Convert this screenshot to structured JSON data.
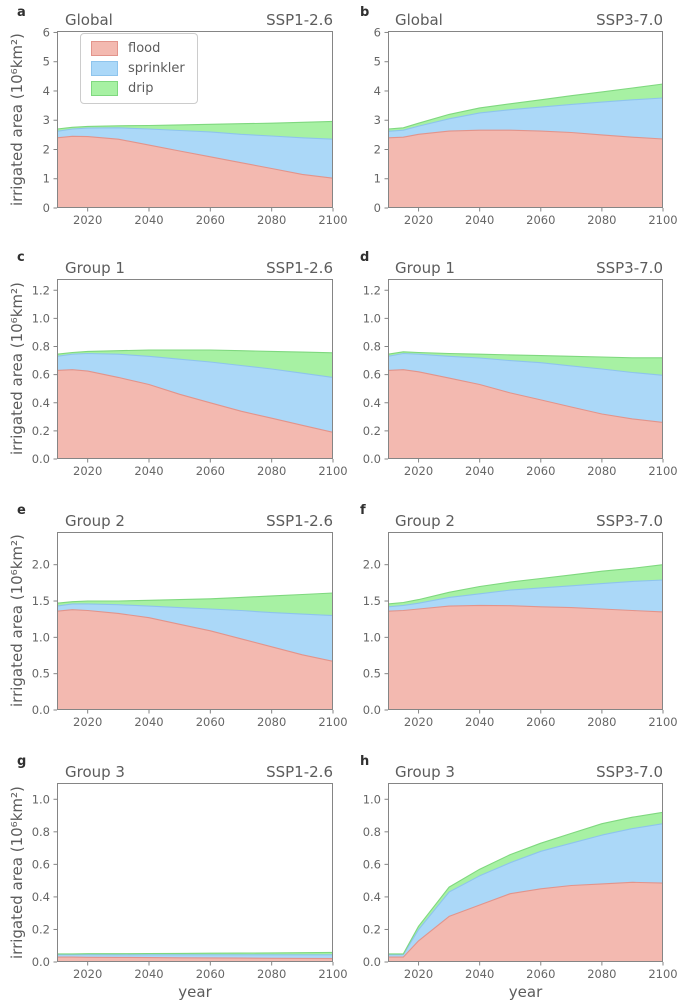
{
  "axis": {
    "xlabel": "year",
    "ylabel": "irrigated area (10⁶km²)"
  },
  "legend": {
    "items": [
      {
        "label": "flood",
        "color": "#f3b9b0",
        "edge": "#e2948b"
      },
      {
        "label": "sprinkler",
        "color": "#abd8f8",
        "edge": "#8ec4ec"
      },
      {
        "label": "drip",
        "color": "#a7f1a3",
        "edge": "#7fd87f"
      }
    ]
  },
  "style": {
    "spine_color": "#858585",
    "tick_label_color": "#666666",
    "background": "#ffffff"
  },
  "chart_data": [
    {
      "panel": "a",
      "group": "Global",
      "scenario": "SSP1-2.6",
      "type": "area",
      "stacked": true,
      "grid": false,
      "x": [
        2010,
        2015,
        2020,
        2030,
        2040,
        2050,
        2060,
        2070,
        2080,
        2090,
        2100
      ],
      "xlim": [
        2010,
        2100
      ],
      "xticks": [
        2020,
        2040,
        2060,
        2080,
        2100
      ],
      "ylim": [
        0,
        6.05
      ],
      "yticks": [
        0,
        1,
        2,
        3,
        4,
        5,
        6
      ],
      "ytick_labels": [
        "0",
        "1",
        "2",
        "3",
        "4",
        "5",
        "6"
      ],
      "series": [
        {
          "name": "flood",
          "values": [
            2.4,
            2.45,
            2.44,
            2.35,
            2.15,
            1.95,
            1.75,
            1.55,
            1.35,
            1.15,
            1.02
          ]
        },
        {
          "name": "sprinkler",
          "values": [
            0.22,
            0.25,
            0.29,
            0.39,
            0.55,
            0.7,
            0.85,
            0.97,
            1.11,
            1.25,
            1.33
          ]
        },
        {
          "name": "drip",
          "values": [
            0.08,
            0.06,
            0.06,
            0.07,
            0.12,
            0.19,
            0.26,
            0.36,
            0.44,
            0.53,
            0.61
          ]
        }
      ]
    },
    {
      "panel": "b",
      "group": "Global",
      "scenario": "SSP3-7.0",
      "type": "area",
      "stacked": true,
      "grid": false,
      "x": [
        2010,
        2015,
        2020,
        2030,
        2040,
        2050,
        2060,
        2070,
        2080,
        2090,
        2100
      ],
      "xlim": [
        2010,
        2100
      ],
      "xticks": [
        2020,
        2040,
        2060,
        2080,
        2100
      ],
      "ylim": [
        0,
        6.05
      ],
      "yticks": [
        0,
        1,
        2,
        3,
        4,
        5,
        6
      ],
      "ytick_labels": [
        "0",
        "1",
        "2",
        "3",
        "4",
        "5",
        "6"
      ],
      "series": [
        {
          "name": "flood",
          "values": [
            2.4,
            2.42,
            2.52,
            2.63,
            2.66,
            2.66,
            2.63,
            2.58,
            2.5,
            2.42,
            2.36
          ]
        },
        {
          "name": "sprinkler",
          "values": [
            0.22,
            0.24,
            0.28,
            0.42,
            0.59,
            0.7,
            0.82,
            0.96,
            1.12,
            1.28,
            1.4
          ]
        },
        {
          "name": "drip",
          "values": [
            0.08,
            0.08,
            0.1,
            0.15,
            0.17,
            0.2,
            0.25,
            0.3,
            0.35,
            0.4,
            0.48
          ]
        }
      ]
    },
    {
      "panel": "c",
      "group": "Group 1",
      "scenario": "SSP1-2.6",
      "type": "area",
      "stacked": true,
      "grid": false,
      "x": [
        2010,
        2015,
        2020,
        2030,
        2040,
        2050,
        2060,
        2070,
        2080,
        2090,
        2100
      ],
      "xlim": [
        2010,
        2100
      ],
      "xticks": [
        2020,
        2040,
        2060,
        2080,
        2100
      ],
      "ylim": [
        0,
        1.28
      ],
      "yticks": [
        0.0,
        0.2,
        0.4,
        0.6,
        0.8,
        1.0,
        1.2
      ],
      "ytick_labels": [
        "0.0",
        "0.2",
        "0.4",
        "0.6",
        "0.8",
        "1.0",
        "1.2"
      ],
      "series": [
        {
          "name": "flood",
          "values": [
            0.63,
            0.635,
            0.625,
            0.58,
            0.53,
            0.46,
            0.4,
            0.34,
            0.29,
            0.24,
            0.19
          ]
        },
        {
          "name": "sprinkler",
          "values": [
            0.1,
            0.11,
            0.125,
            0.165,
            0.2,
            0.25,
            0.29,
            0.325,
            0.35,
            0.37,
            0.39
          ]
        },
        {
          "name": "drip",
          "values": [
            0.015,
            0.012,
            0.015,
            0.025,
            0.045,
            0.065,
            0.085,
            0.105,
            0.125,
            0.15,
            0.175
          ]
        }
      ]
    },
    {
      "panel": "d",
      "group": "Group 1",
      "scenario": "SSP3-7.0",
      "type": "area",
      "stacked": true,
      "grid": false,
      "x": [
        2010,
        2015,
        2020,
        2030,
        2040,
        2050,
        2060,
        2070,
        2080,
        2090,
        2100
      ],
      "xlim": [
        2010,
        2100
      ],
      "xticks": [
        2020,
        2040,
        2060,
        2080,
        2100
      ],
      "ylim": [
        0,
        1.28
      ],
      "yticks": [
        0.0,
        0.2,
        0.4,
        0.6,
        0.8,
        1.0,
        1.2
      ],
      "ytick_labels": [
        "0.0",
        "0.2",
        "0.4",
        "0.6",
        "0.8",
        "1.0",
        "1.2"
      ],
      "series": [
        {
          "name": "flood",
          "values": [
            0.63,
            0.635,
            0.62,
            0.575,
            0.53,
            0.47,
            0.42,
            0.37,
            0.32,
            0.285,
            0.26
          ]
        },
        {
          "name": "sprinkler",
          "values": [
            0.1,
            0.115,
            0.125,
            0.155,
            0.188,
            0.23,
            0.265,
            0.292,
            0.32,
            0.33,
            0.335
          ]
        },
        {
          "name": "drip",
          "values": [
            0.015,
            0.012,
            0.012,
            0.02,
            0.027,
            0.04,
            0.05,
            0.068,
            0.085,
            0.105,
            0.125
          ]
        }
      ]
    },
    {
      "panel": "e",
      "group": "Group 2",
      "scenario": "SSP1-2.6",
      "type": "area",
      "stacked": true,
      "grid": false,
      "x": [
        2010,
        2015,
        2020,
        2030,
        2040,
        2050,
        2060,
        2070,
        2080,
        2090,
        2100
      ],
      "xlim": [
        2010,
        2100
      ],
      "xticks": [
        2020,
        2040,
        2060,
        2080,
        2100
      ],
      "ylim": [
        0,
        2.45
      ],
      "yticks": [
        0.0,
        0.5,
        1.0,
        1.5,
        2.0
      ],
      "ytick_labels": [
        "0.0",
        "0.5",
        "1.0",
        "1.5",
        "2.0"
      ],
      "series": [
        {
          "name": "flood",
          "values": [
            1.36,
            1.38,
            1.37,
            1.33,
            1.27,
            1.18,
            1.09,
            0.98,
            0.87,
            0.76,
            0.67
          ]
        },
        {
          "name": "sprinkler",
          "values": [
            0.07,
            0.08,
            0.09,
            0.12,
            0.16,
            0.23,
            0.3,
            0.39,
            0.47,
            0.56,
            0.63
          ]
        },
        {
          "name": "drip",
          "values": [
            0.04,
            0.03,
            0.04,
            0.05,
            0.08,
            0.11,
            0.14,
            0.18,
            0.23,
            0.27,
            0.31
          ]
        }
      ]
    },
    {
      "panel": "f",
      "group": "Group 2",
      "scenario": "SSP3-7.0",
      "type": "area",
      "stacked": true,
      "grid": false,
      "x": [
        2010,
        2015,
        2020,
        2030,
        2040,
        2050,
        2060,
        2070,
        2080,
        2090,
        2100
      ],
      "xlim": [
        2010,
        2100
      ],
      "xticks": [
        2020,
        2040,
        2060,
        2080,
        2100
      ],
      "ylim": [
        0,
        2.45
      ],
      "yticks": [
        0.0,
        0.5,
        1.0,
        1.5,
        2.0
      ],
      "ytick_labels": [
        "0.0",
        "0.5",
        "1.0",
        "1.5",
        "2.0"
      ],
      "series": [
        {
          "name": "flood",
          "values": [
            1.36,
            1.37,
            1.39,
            1.43,
            1.44,
            1.435,
            1.42,
            1.41,
            1.39,
            1.37,
            1.35
          ]
        },
        {
          "name": "sprinkler",
          "values": [
            0.06,
            0.07,
            0.08,
            0.12,
            0.16,
            0.215,
            0.26,
            0.3,
            0.35,
            0.4,
            0.44
          ]
        },
        {
          "name": "drip",
          "values": [
            0.04,
            0.04,
            0.05,
            0.07,
            0.1,
            0.11,
            0.13,
            0.15,
            0.17,
            0.18,
            0.21
          ]
        }
      ]
    },
    {
      "panel": "g",
      "group": "Group 3",
      "scenario": "SSP1-2.6",
      "type": "area",
      "stacked": true,
      "grid": false,
      "x": [
        2010,
        2015,
        2020,
        2030,
        2040,
        2050,
        2060,
        2070,
        2080,
        2090,
        2100
      ],
      "xlim": [
        2010,
        2100
      ],
      "xticks": [
        2020,
        2040,
        2060,
        2080,
        2100
      ],
      "ylim": [
        0,
        1.1
      ],
      "yticks": [
        0.0,
        0.2,
        0.4,
        0.6,
        0.8,
        1.0
      ],
      "ytick_labels": [
        "0.0",
        "0.2",
        "0.4",
        "0.6",
        "0.8",
        "1.0"
      ],
      "series": [
        {
          "name": "flood",
          "values": [
            0.03,
            0.03,
            0.029,
            0.028,
            0.027,
            0.026,
            0.025,
            0.024,
            0.023,
            0.022,
            0.021
          ]
        },
        {
          "name": "sprinkler",
          "values": [
            0.015,
            0.015,
            0.016,
            0.016,
            0.017,
            0.018,
            0.019,
            0.02,
            0.021,
            0.022,
            0.023
          ]
        },
        {
          "name": "drip",
          "values": [
            0.005,
            0.005,
            0.006,
            0.007,
            0.008,
            0.009,
            0.01,
            0.011,
            0.012,
            0.013,
            0.015
          ]
        }
      ]
    },
    {
      "panel": "h",
      "group": "Group 3",
      "scenario": "SSP3-7.0",
      "type": "area",
      "stacked": true,
      "grid": false,
      "x": [
        2010,
        2015,
        2020,
        2030,
        2040,
        2050,
        2060,
        2070,
        2080,
        2090,
        2100
      ],
      "xlim": [
        2010,
        2100
      ],
      "xticks": [
        2020,
        2040,
        2060,
        2080,
        2100
      ],
      "ylim": [
        0,
        1.1
      ],
      "yticks": [
        0.0,
        0.2,
        0.4,
        0.6,
        0.8,
        1.0
      ],
      "ytick_labels": [
        "0.0",
        "0.2",
        "0.4",
        "0.6",
        "0.8",
        "1.0"
      ],
      "series": [
        {
          "name": "flood",
          "values": [
            0.03,
            0.03,
            0.13,
            0.28,
            0.35,
            0.42,
            0.45,
            0.47,
            0.48,
            0.49,
            0.485
          ]
        },
        {
          "name": "sprinkler",
          "values": [
            0.015,
            0.015,
            0.07,
            0.15,
            0.18,
            0.19,
            0.23,
            0.26,
            0.3,
            0.33,
            0.365
          ]
        },
        {
          "name": "drip",
          "values": [
            0.005,
            0.005,
            0.02,
            0.03,
            0.04,
            0.05,
            0.05,
            0.06,
            0.07,
            0.07,
            0.07
          ]
        }
      ]
    }
  ]
}
